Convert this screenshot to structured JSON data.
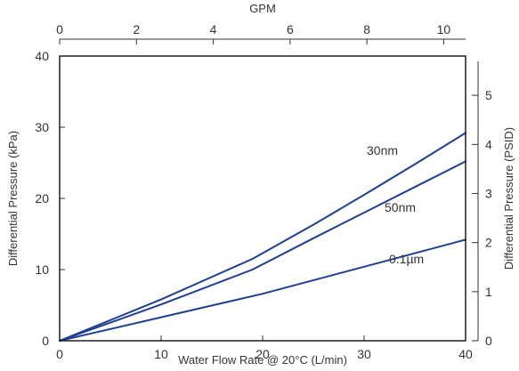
{
  "chart_data": {
    "type": "line",
    "xlabel": "Water Flow Rate @ 20°C (L/min)",
    "ylabel": "Differential Pressure (kPa)",
    "x2label": "GPM",
    "y2label": "Differential Pressure (PSID)",
    "xlim": [
      0,
      40
    ],
    "ylim": [
      0,
      40
    ],
    "x2lim": [
      0,
      10.57
    ],
    "y2lim": [
      0,
      5.8
    ],
    "xticks": [
      0,
      10,
      20,
      30,
      40
    ],
    "yticks": [
      0,
      10,
      20,
      30,
      40
    ],
    "x2ticks": [
      0,
      2,
      4,
      6,
      8,
      10
    ],
    "y2ticks": [
      0,
      1,
      2,
      3,
      4,
      5
    ],
    "grid": false,
    "line_color": "#1f3f8f",
    "series": [
      {
        "name": "30nm",
        "x": [
          0,
          10,
          19,
          25,
          30,
          35,
          40
        ],
        "y": [
          0,
          5.8,
          11.5,
          16.3,
          20.5,
          24.8,
          29.2
        ]
      },
      {
        "name": "50nm",
        "x": [
          0,
          10,
          19,
          25,
          30,
          35,
          40
        ],
        "y": [
          0,
          5.1,
          10,
          14.4,
          18,
          21.6,
          25.2
        ]
      },
      {
        "name": "0.1µm",
        "x": [
          0,
          10,
          20,
          30,
          40
        ],
        "y": [
          0,
          3.3,
          6.6,
          10.4,
          14.2
        ]
      }
    ]
  }
}
